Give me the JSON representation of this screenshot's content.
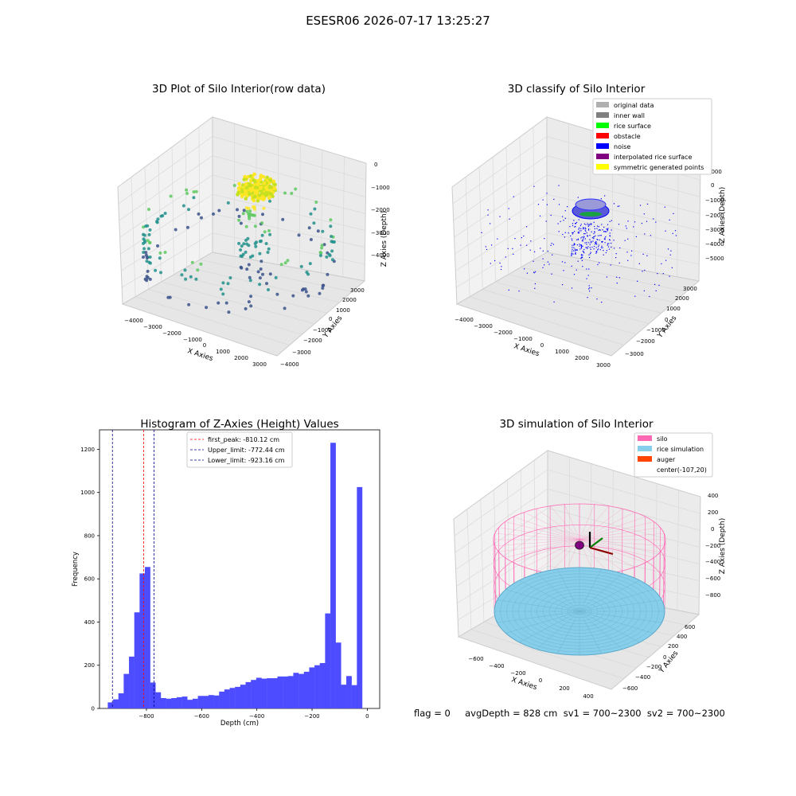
{
  "figure": {
    "suptitle": "ESESR06 2026-07-17 13:25:27",
    "status_text": "flag = 0     avgDepth = 828 cm  sv1 = 700~2300  sv2 = 700~2300"
  },
  "colors": {
    "hist_bar": "#4d4dff",
    "peak_line": "#ff0000",
    "limit_line": "#00008b",
    "silo": "#ff69b4",
    "rice_simulation": "#87ceeb",
    "auger": "#ff4500",
    "pane_left": "#f2f2f2",
    "pane_right": "#ebebeb",
    "pane_floor": "#e6e6e6",
    "grid": "#d0d0d0",
    "rawdata_colormap": [
      "#440154",
      "#3b528b",
      "#21918c",
      "#5ec962",
      "#fde725"
    ]
  },
  "chart_data": [
    {
      "type": "scatter",
      "title": "3D Plot of Silo Interior(row data)",
      "xlabel": "X Axies",
      "ylabel": "Y Axies",
      "zlabel": "Z Axies (Depth)",
      "x_ticks": [
        "−4000",
        "−3000",
        "−2000",
        "−1000",
        "0",
        "1000",
        "2000",
        "3000"
      ],
      "y_ticks": [
        "−4000",
        "−3000",
        "−2000",
        "−1000",
        "0",
        "1000",
        "2000",
        "3000"
      ],
      "z_ticks": [
        "0",
        "−1000",
        "−2000",
        "−3000",
        "−4000"
      ],
      "xlim": [
        -4300,
        3400
      ],
      "ylim": [
        -4200,
        3500
      ],
      "zlim": [
        -4600,
        300
      ]
    },
    {
      "type": "scatter",
      "title": "3D classify of Silo Interior",
      "xlabel": "X Axies",
      "ylabel": "Y Axies",
      "zlabel": "Z Axies (Depth)",
      "x_ticks": [
        "−4000",
        "−3000",
        "−2000",
        "−1000",
        "0",
        "1000",
        "2000",
        "3000"
      ],
      "y_ticks": [
        "−3000",
        "−2000",
        "−1000",
        "0",
        "1000",
        "2000",
        "3000"
      ],
      "z_ticks": [
        "1000",
        "0",
        "−1000",
        "−2000",
        "−3000",
        "−4000",
        "−5000"
      ],
      "xlim": [
        -4300,
        3300
      ],
      "ylim": [
        -3500,
        3500
      ],
      "zlim": [
        -5700,
        1300
      ],
      "legend": [
        "original data",
        "inner wall",
        "rice surface",
        "obstacle",
        "noise",
        "interpolated rice surface",
        "symmetric generated points"
      ],
      "legend_colors": [
        "#b0b0b0",
        "#808080",
        "#00ff00",
        "#ff0000",
        "#0000ff",
        "#800080",
        "#ffff00"
      ],
      "legend_position": "top-right"
    },
    {
      "type": "bar",
      "title": "Histogram of Z-Axies (Height) Values",
      "xlabel": "Depth (cm)",
      "ylabel": "Frequency",
      "xlim": [
        -970,
        45
      ],
      "ylim": [
        0,
        1290
      ],
      "x_ticks": [
        -800,
        -600,
        -400,
        -200,
        0
      ],
      "x_tick_labels": [
        "−800",
        "−600",
        "−400",
        "−200",
        "0"
      ],
      "y_ticks": [
        0,
        200,
        400,
        600,
        800,
        1000,
        1200
      ],
      "bin_start": -940,
      "bin_width": 19.2,
      "values": [
        28,
        42,
        70,
        160,
        240,
        445,
        625,
        655,
        120,
        75,
        48,
        45,
        48,
        52,
        55,
        40,
        45,
        58,
        58,
        62,
        60,
        78,
        88,
        95,
        100,
        110,
        122,
        132,
        142,
        138,
        140,
        140,
        148,
        148,
        150,
        165,
        160,
        170,
        190,
        200,
        210,
        440,
        1230,
        305,
        110,
        150,
        108,
        1025
      ],
      "lines": [
        {
          "label": "first_peak: -810.12 cm",
          "x": -810.12,
          "color": "#ff0000"
        },
        {
          "label": "Upper_limit: -772.44 cm",
          "x": -772.44,
          "color": "#00008b"
        },
        {
          "label": "Lower_limit: -923.16 cm",
          "x": -923.16,
          "color": "#00008b"
        }
      ],
      "legend_position": "top-center"
    },
    {
      "type": "surface",
      "title": "3D simulation of Silo Interior",
      "xlabel": "X Axies",
      "ylabel": "Y Axies",
      "zlabel": "Z Axies (Depth)",
      "x_ticks": [
        "−600",
        "−400",
        "−200",
        "0",
        "200",
        "400"
      ],
      "y_ticks": [
        "−600",
        "−400",
        "−200",
        "0",
        "200",
        "400",
        "600"
      ],
      "z_ticks": [
        "400",
        "200",
        "0",
        "−200",
        "−400",
        "−600",
        "−800"
      ],
      "xlim": [
        -700,
        500
      ],
      "ylim": [
        -700,
        700
      ],
      "zlim": [
        -900,
        450
      ],
      "legend": [
        "silo",
        "rice simulation",
        "auger",
        "center(-107,20)"
      ],
      "legend_colors": [
        "#ff69b4",
        "#87ceeb",
        "#ff4500",
        ""
      ],
      "legend_position": "top-right"
    }
  ]
}
